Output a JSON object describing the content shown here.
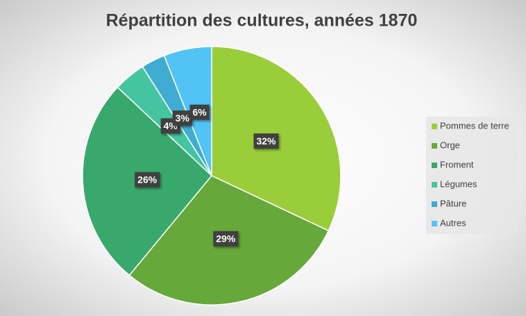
{
  "chart_data": {
    "type": "pie",
    "title": "Répartition des cultures, années 1870",
    "categories": [
      "Pommes de terre",
      "Orge",
      "Froment",
      "Légumes",
      "Pâture",
      "Autres"
    ],
    "values": [
      32,
      29,
      26,
      4,
      3,
      6
    ],
    "value_labels": [
      "32%",
      "29%",
      "26%",
      "4%",
      "3%",
      "6%"
    ],
    "colors": [
      "#9acd3a",
      "#66a83a",
      "#38a86c",
      "#45c4a2",
      "#40acd2",
      "#52c3f5"
    ],
    "legend": "right"
  }
}
